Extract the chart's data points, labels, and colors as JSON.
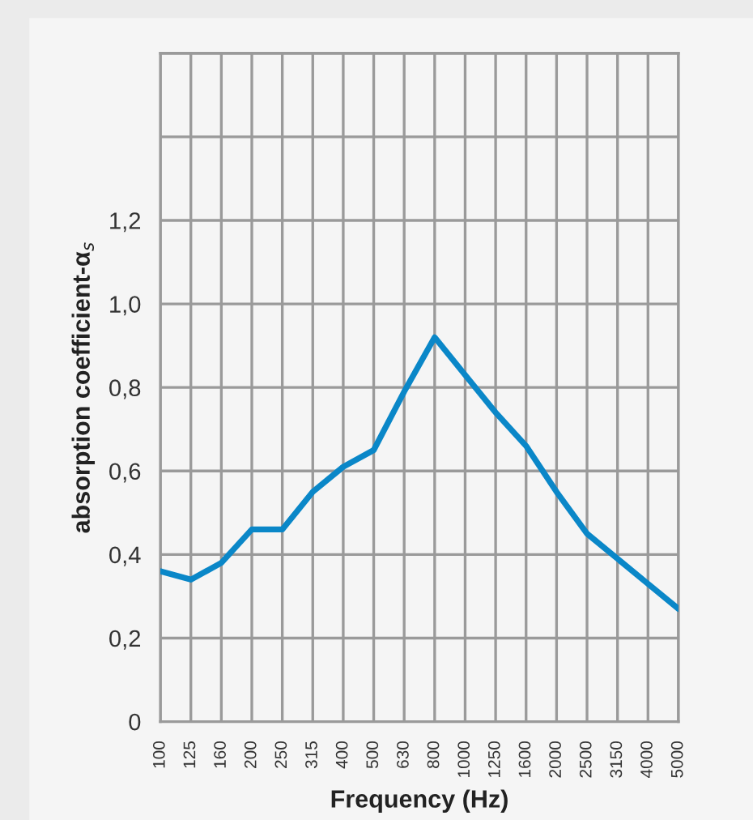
{
  "chart_data": {
    "type": "line",
    "xlabel": "Frequency (Hz)",
    "ylabel": "absorption coefficient-α$_{s}$",
    "categories": [
      "100",
      "125",
      "160",
      "200",
      "250",
      "315",
      "400",
      "500",
      "630",
      "800",
      "1000",
      "1250",
      "1600",
      "2000",
      "2500",
      "3150",
      "4000",
      "5000"
    ],
    "series": [
      {
        "color": "#0a87c8",
        "values": [
          0.36,
          0.34,
          0.38,
          0.46,
          0.46,
          0.55,
          0.61,
          0.65,
          0.79,
          0.92,
          0.83,
          0.74,
          0.66,
          0.55,
          0.45,
          0.39,
          0.33,
          0.27
        ]
      }
    ],
    "ylim": [
      0,
      1.6
    ],
    "yticks": [
      {
        "value": 0,
        "label": "0"
      },
      {
        "value": 0.2,
        "label": "0,2"
      },
      {
        "value": 0.4,
        "label": "0,4"
      },
      {
        "value": 0.6,
        "label": "0,6"
      },
      {
        "value": 0.8,
        "label": "0,8"
      },
      {
        "value": 1.0,
        "label": "1,0"
      },
      {
        "value": 1.2,
        "label": "1,2"
      },
      {
        "value": 1.4,
        "label": null
      },
      {
        "value": 1.6,
        "label": null
      }
    ],
    "grid": true,
    "marker": "none",
    "line_style": "solid"
  }
}
